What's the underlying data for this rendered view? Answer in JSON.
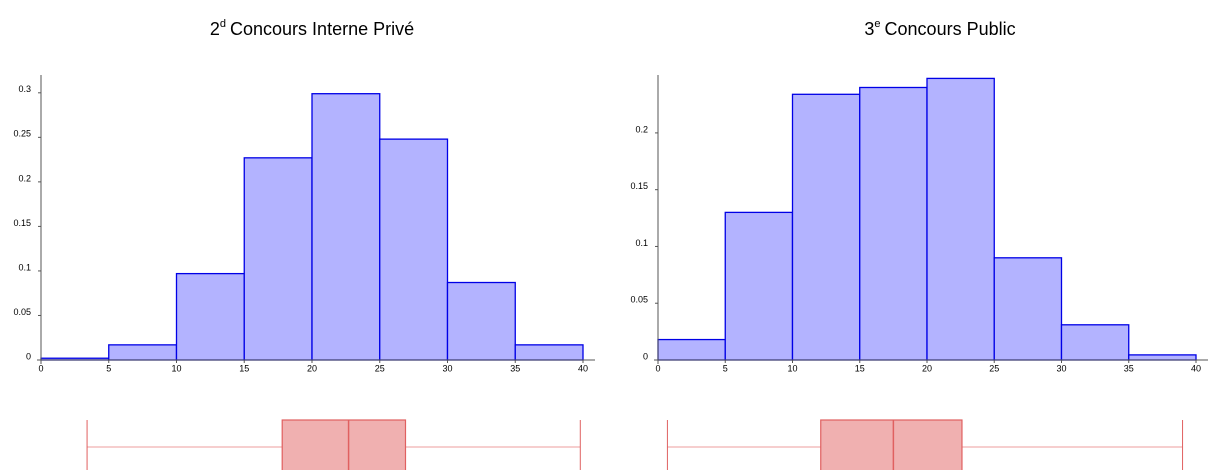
{
  "chart_data": [
    {
      "type": "histogram",
      "title": {
        "number": "2",
        "superscript": "d",
        "text": "Concours Interne Privé"
      },
      "bins": [
        0,
        5,
        10,
        15,
        20,
        25,
        30,
        35,
        40
      ],
      "values": [
        0.002,
        0.017,
        0.097,
        0.227,
        0.299,
        0.248,
        0.087,
        0.017
      ],
      "color": "#b3b3ff",
      "edge_color": "#0000e6",
      "xlim": [
        0,
        40
      ],
      "xticks": [
        0,
        5,
        10,
        15,
        20,
        25,
        30,
        35,
        40
      ],
      "ylim": [
        0,
        0.32
      ],
      "yticks": [
        0,
        0.05,
        0.1,
        0.15,
        0.2,
        0.25,
        0.3
      ],
      "boxplot": {
        "min": 3.4,
        "q1": 17.8,
        "median": 22.7,
        "q3": 26.9,
        "max": 39.8,
        "color": "#f0b0b0",
        "edge_color": "#e06060"
      }
    },
    {
      "type": "histogram",
      "title": {
        "number": "3",
        "superscript": "e",
        "text": "Concours Public"
      },
      "bins": [
        0,
        5,
        10,
        15,
        20,
        25,
        30,
        35,
        40
      ],
      "values": [
        0.018,
        0.13,
        0.234,
        0.24,
        0.248,
        0.09,
        0.031,
        0.0045
      ],
      "color": "#b3b3ff",
      "edge_color": "#0000e6",
      "xlim": [
        0,
        40
      ],
      "xticks": [
        0,
        5,
        10,
        15,
        20,
        25,
        30,
        35,
        40
      ],
      "ylim": [
        0,
        0.251
      ],
      "yticks": [
        0,
        0.05,
        0.1,
        0.15,
        0.2
      ],
      "boxplot": {
        "min": 0.7,
        "q1": 12.1,
        "median": 17.5,
        "q3": 22.6,
        "max": 39.0,
        "color": "#f0b0b0",
        "edge_color": "#e06060"
      }
    }
  ]
}
